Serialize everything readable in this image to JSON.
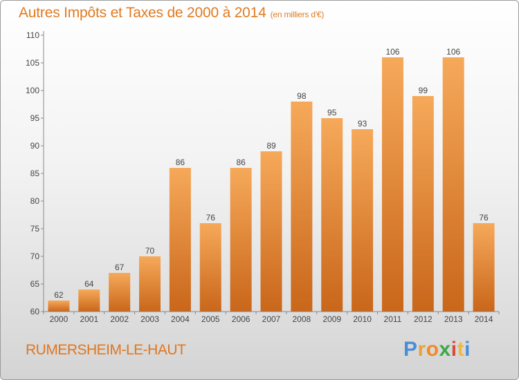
{
  "header": {
    "title": "Autres Impôts et Taxes de 2000 à 2014",
    "unit": "(en milliers d'€)"
  },
  "footer": {
    "commune": "RUMERSHEIM-LE-HAUT",
    "logo_text": "Proxiti",
    "logo_colors": [
      "#4a8fd6",
      "#e8a23a",
      "#f08a2a",
      "#3aa84a",
      "#d94a3a",
      "#f0b93a",
      "#4a8fd6"
    ]
  },
  "colors": {
    "title": "#e07a1f",
    "bar_top": "#f6a95a",
    "bar_bottom": "#c9661a",
    "axis": "#888888",
    "grid": "#dddddd"
  },
  "chart_data": {
    "type": "bar",
    "title": "Autres Impôts et Taxes de 2000 à 2014",
    "subtitle": "(en milliers d'€)",
    "categories": [
      "2000",
      "2001",
      "2002",
      "2003",
      "2004",
      "2005",
      "2006",
      "2007",
      "2008",
      "2009",
      "2010",
      "2011",
      "2012",
      "2013",
      "2014"
    ],
    "values": [
      62,
      64,
      67,
      70,
      86,
      76,
      86,
      89,
      98,
      95,
      93,
      106,
      99,
      106,
      76
    ],
    "ylim": [
      60,
      110
    ],
    "yticks": [
      60,
      65,
      70,
      75,
      80,
      85,
      90,
      95,
      100,
      105,
      110
    ],
    "xlabel": "",
    "ylabel": "",
    "grid": false,
    "data_labels": true
  }
}
